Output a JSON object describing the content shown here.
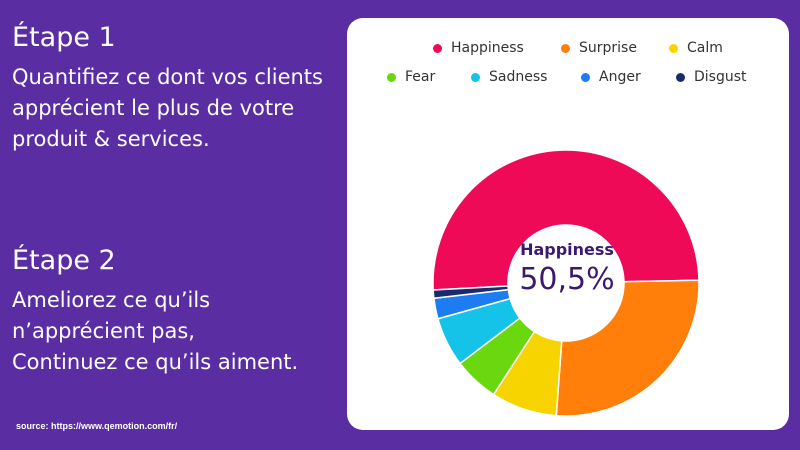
{
  "step1": {
    "title": "Étape 1",
    "lines": [
      "Quantifiez ce dont vos clients",
      "apprécient le plus de votre",
      "produit & services."
    ]
  },
  "step2": {
    "title": "Étape 2",
    "lines": [
      "Ameliorez ce qu’ils",
      "n’apprécient pas,",
      "Continuez ce qu’ils aiment."
    ]
  },
  "source": "source: https://www.qemotion.com/fr/",
  "chart_data": {
    "type": "pie",
    "donut": true,
    "center_label": "Happiness",
    "center_value": "50,5%",
    "legend_placement": "top",
    "series": [
      {
        "name": "Happiness",
        "value": 50.5,
        "color": "#ee0a56"
      },
      {
        "name": "Surprise",
        "value": 26.5,
        "color": "#ff7f0a"
      },
      {
        "name": "Calm",
        "value": 8.0,
        "color": "#f7d400"
      },
      {
        "name": "Fear",
        "value": 5.5,
        "color": "#6ad80f"
      },
      {
        "name": "Sadness",
        "value": 6.0,
        "color": "#16c3e8"
      },
      {
        "name": "Anger",
        "value": 2.5,
        "color": "#1d7cf2"
      },
      {
        "name": "Disgust",
        "value": 1.0,
        "color": "#1a2a6e"
      }
    ]
  },
  "colors": {
    "background": "#5b2da3",
    "card": "#ffffff",
    "center_text": "#3b1a6e"
  }
}
